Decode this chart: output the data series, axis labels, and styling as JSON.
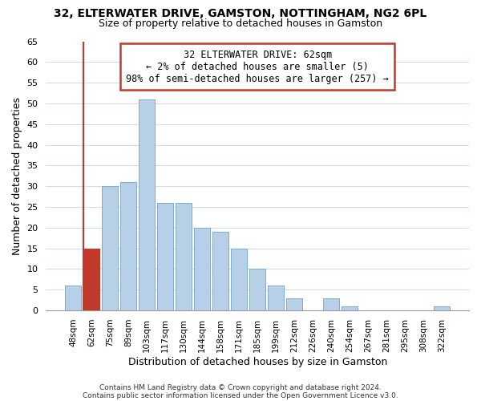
{
  "title": "32, ELTERWATER DRIVE, GAMSTON, NOTTINGHAM, NG2 6PL",
  "subtitle": "Size of property relative to detached houses in Gamston",
  "xlabel": "Distribution of detached houses by size in Gamston",
  "ylabel": "Number of detached properties",
  "categories": [
    "48sqm",
    "62sqm",
    "75sqm",
    "89sqm",
    "103sqm",
    "117sqm",
    "130sqm",
    "144sqm",
    "158sqm",
    "171sqm",
    "185sqm",
    "199sqm",
    "212sqm",
    "226sqm",
    "240sqm",
    "254sqm",
    "267sqm",
    "281sqm",
    "295sqm",
    "308sqm",
    "322sqm"
  ],
  "values": [
    6,
    15,
    30,
    31,
    51,
    26,
    26,
    20,
    19,
    15,
    10,
    6,
    3,
    0,
    3,
    1,
    0,
    0,
    0,
    0,
    1
  ],
  "highlight_index": 1,
  "highlight_color": "#c0392b",
  "bar_color": "#b8cfe8",
  "bar_edge_color": "#7aadd4",
  "ylim": [
    0,
    65
  ],
  "yticks": [
    0,
    5,
    10,
    15,
    20,
    25,
    30,
    35,
    40,
    45,
    50,
    55,
    60,
    65
  ],
  "annotation_lines": [
    "32 ELTERWATER DRIVE: 62sqm",
    "← 2% of detached houses are smaller (5)",
    "98% of semi-detached houses are larger (257) →"
  ],
  "footer_lines": [
    "Contains HM Land Registry data © Crown copyright and database right 2024.",
    "Contains public sector information licensed under the Open Government Licence v3.0."
  ],
  "background_color": "#ffffff",
  "grid_color": "#d0dce8"
}
